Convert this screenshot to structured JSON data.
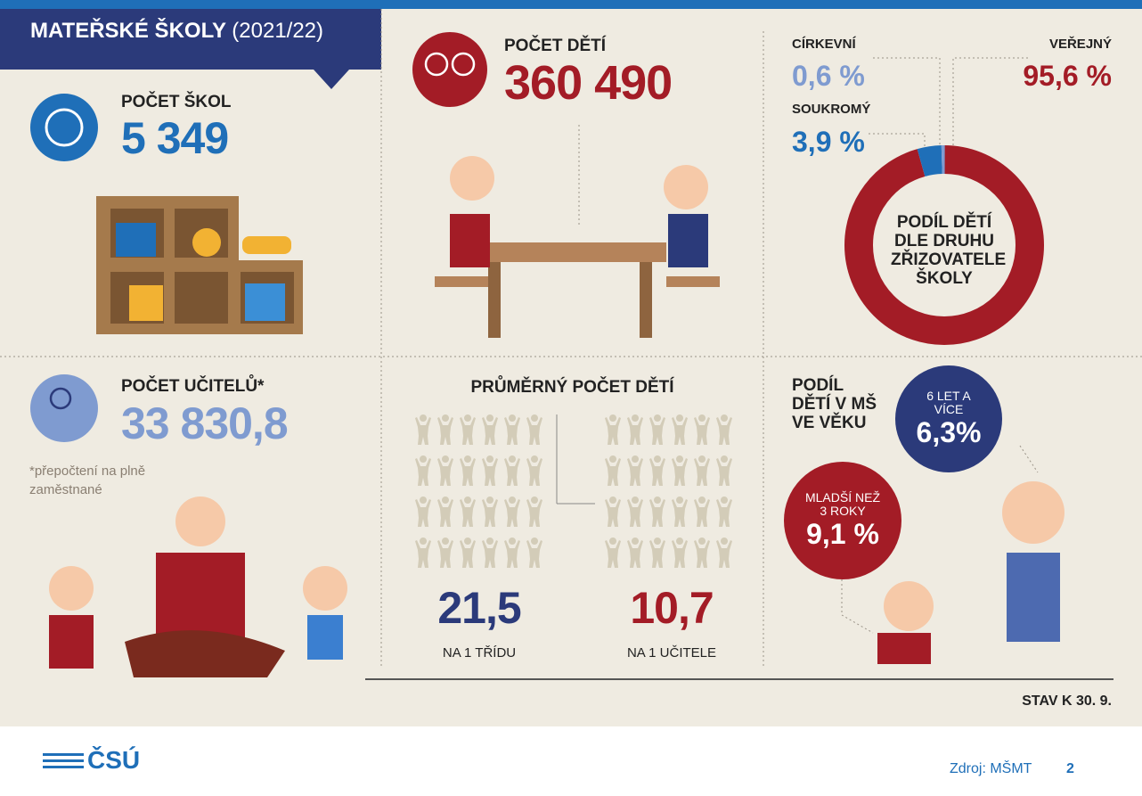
{
  "header": {
    "title": "MATEŘSKÉ ŠKOLY",
    "period": "(2021/22)"
  },
  "schools": {
    "label": "POČET ŠKOL",
    "value": "5 349"
  },
  "children": {
    "label": "POČET DĚTÍ",
    "value": "360 490"
  },
  "founder_chart": {
    "type": "donut",
    "title": "PODÍL DĚTÍ DLE DRUHU ZŘIZOVATELE ŠKOLY",
    "segments": [
      {
        "name": "VEŘEJNÝ",
        "value": 95.6,
        "label": "95,6 %",
        "color": "#a31c26"
      },
      {
        "name": "SOUKROMÝ",
        "value": 3.9,
        "label": "3,9 %",
        "color": "#1f6fb8"
      },
      {
        "name": "CÍRKEVNÍ",
        "value": 0.6,
        "label": "0,6 %",
        "color": "#7f9bd0"
      }
    ]
  },
  "teachers": {
    "label": "POČET UČITELŮ*",
    "value": "33 830,8",
    "note": "*přepočtení na plně zaměstnané"
  },
  "average": {
    "title": "PRŮMĚRNÝ POČET DĚTÍ",
    "per_class": {
      "value": 21.5,
      "label": "21,5",
      "caption": "NA 1 TŘÍDU",
      "color": "#2b3a7a"
    },
    "per_teacher": {
      "value": 10.7,
      "label": "10,7",
      "caption": "NA 1 UČITELE",
      "color": "#a31c26"
    }
  },
  "age": {
    "title": "PODÍL DĚTÍ V MŠ VE VĚKU",
    "older": {
      "caption": "6 LET A VÍCE",
      "value": "6,3%"
    },
    "younger": {
      "caption": "MLADŠÍ NEŽ 3 ROKY",
      "value": "9,1 %"
    }
  },
  "date_note": "STAV K 30. 9.",
  "footer": {
    "logo": "ČSÚ",
    "source": "Zdroj: MŠMT",
    "page": "2"
  }
}
